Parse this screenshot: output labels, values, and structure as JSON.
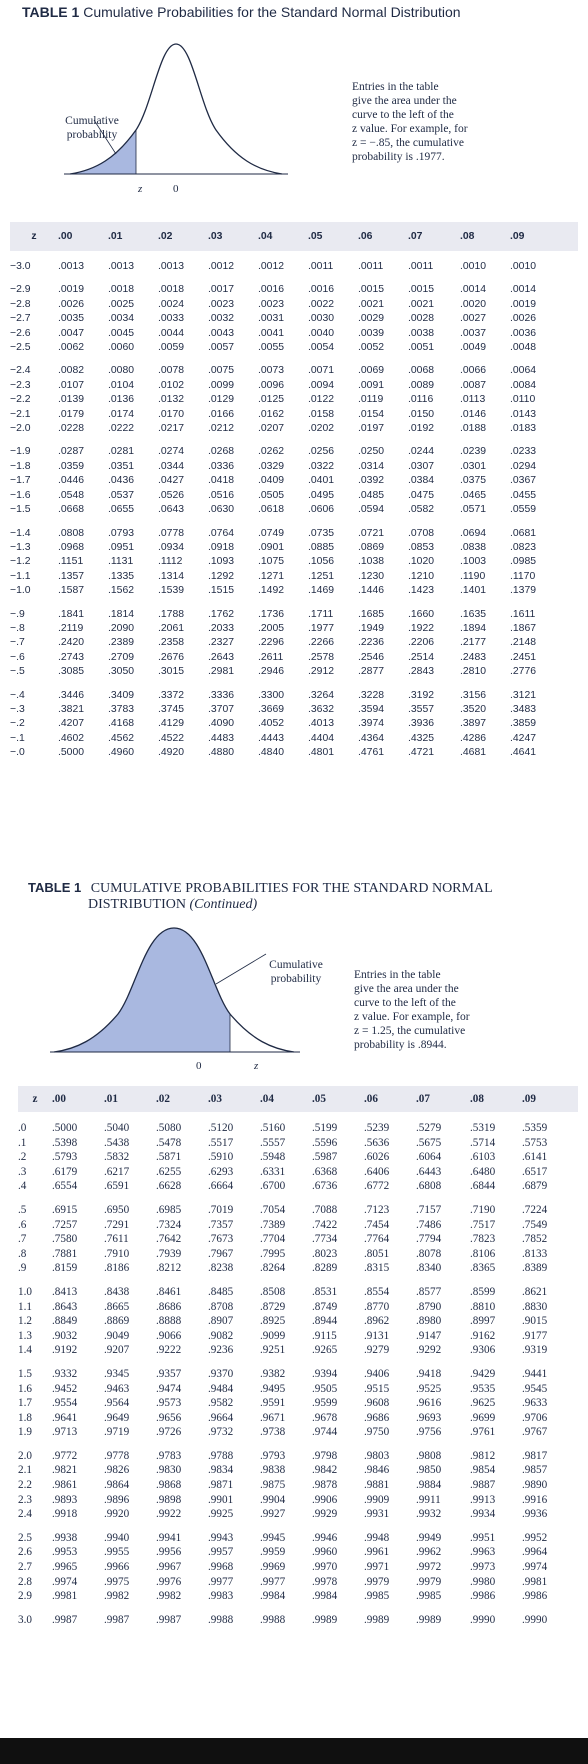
{
  "table1": {
    "label": "TABLE 1",
    "title": "Cumulative Probabilities for the Standard Normal Distribution",
    "cumulative_label": [
      "Cumulative",
      "probability"
    ],
    "axis_z": "z",
    "axis_zero": "0",
    "note": [
      "Entries in the table",
      "give the area under the",
      "curve to the left of the",
      "z value. For example, for",
      "z = −.85, the cumulative",
      "probability is .1977."
    ],
    "header": [
      "z",
      ".00",
      ".01",
      ".02",
      ".03",
      ".04",
      ".05",
      ".06",
      ".07",
      ".08",
      ".09"
    ],
    "groups": [
      [
        [
          "−3.0",
          ".0013",
          ".0013",
          ".0013",
          ".0012",
          ".0012",
          ".0011",
          ".0011",
          ".0011",
          ".0010",
          ".0010"
        ]
      ],
      [
        [
          "−2.9",
          ".0019",
          ".0018",
          ".0018",
          ".0017",
          ".0016",
          ".0016",
          ".0015",
          ".0015",
          ".0014",
          ".0014"
        ],
        [
          "−2.8",
          ".0026",
          ".0025",
          ".0024",
          ".0023",
          ".0023",
          ".0022",
          ".0021",
          ".0021",
          ".0020",
          ".0019"
        ],
        [
          "−2.7",
          ".0035",
          ".0034",
          ".0033",
          ".0032",
          ".0031",
          ".0030",
          ".0029",
          ".0028",
          ".0027",
          ".0026"
        ],
        [
          "−2.6",
          ".0047",
          ".0045",
          ".0044",
          ".0043",
          ".0041",
          ".0040",
          ".0039",
          ".0038",
          ".0037",
          ".0036"
        ],
        [
          "−2.5",
          ".0062",
          ".0060",
          ".0059",
          ".0057",
          ".0055",
          ".0054",
          ".0052",
          ".0051",
          ".0049",
          ".0048"
        ]
      ],
      [
        [
          "−2.4",
          ".0082",
          ".0080",
          ".0078",
          ".0075",
          ".0073",
          ".0071",
          ".0069",
          ".0068",
          ".0066",
          ".0064"
        ],
        [
          "−2.3",
          ".0107",
          ".0104",
          ".0102",
          ".0099",
          ".0096",
          ".0094",
          ".0091",
          ".0089",
          ".0087",
          ".0084"
        ],
        [
          "−2.2",
          ".0139",
          ".0136",
          ".0132",
          ".0129",
          ".0125",
          ".0122",
          ".0119",
          ".0116",
          ".0113",
          ".0110"
        ],
        [
          "−2.1",
          ".0179",
          ".0174",
          ".0170",
          ".0166",
          ".0162",
          ".0158",
          ".0154",
          ".0150",
          ".0146",
          ".0143"
        ],
        [
          "−2.0",
          ".0228",
          ".0222",
          ".0217",
          ".0212",
          ".0207",
          ".0202",
          ".0197",
          ".0192",
          ".0188",
          ".0183"
        ]
      ],
      [
        [
          "−1.9",
          ".0287",
          ".0281",
          ".0274",
          ".0268",
          ".0262",
          ".0256",
          ".0250",
          ".0244",
          ".0239",
          ".0233"
        ],
        [
          "−1.8",
          ".0359",
          ".0351",
          ".0344",
          ".0336",
          ".0329",
          ".0322",
          ".0314",
          ".0307",
          ".0301",
          ".0294"
        ],
        [
          "−1.7",
          ".0446",
          ".0436",
          ".0427",
          ".0418",
          ".0409",
          ".0401",
          ".0392",
          ".0384",
          ".0375",
          ".0367"
        ],
        [
          "−1.6",
          ".0548",
          ".0537",
          ".0526",
          ".0516",
          ".0505",
          ".0495",
          ".0485",
          ".0475",
          ".0465",
          ".0455"
        ],
        [
          "−1.5",
          ".0668",
          ".0655",
          ".0643",
          ".0630",
          ".0618",
          ".0606",
          ".0594",
          ".0582",
          ".0571",
          ".0559"
        ]
      ],
      [
        [
          "−1.4",
          ".0808",
          ".0793",
          ".0778",
          ".0764",
          ".0749",
          ".0735",
          ".0721",
          ".0708",
          ".0694",
          ".0681"
        ],
        [
          "−1.3",
          ".0968",
          ".0951",
          ".0934",
          ".0918",
          ".0901",
          ".0885",
          ".0869",
          ".0853",
          ".0838",
          ".0823"
        ],
        [
          "−1.2",
          ".1151",
          ".1131",
          ".1112",
          ".1093",
          ".1075",
          ".1056",
          ".1038",
          ".1020",
          ".1003",
          ".0985"
        ],
        [
          "−1.1",
          ".1357",
          ".1335",
          ".1314",
          ".1292",
          ".1271",
          ".1251",
          ".1230",
          ".1210",
          ".1190",
          ".1170"
        ],
        [
          "−1.0",
          ".1587",
          ".1562",
          ".1539",
          ".1515",
          ".1492",
          ".1469",
          ".1446",
          ".1423",
          ".1401",
          ".1379"
        ]
      ],
      [
        [
          "−.9",
          ".1841",
          ".1814",
          ".1788",
          ".1762",
          ".1736",
          ".1711",
          ".1685",
          ".1660",
          ".1635",
          ".1611"
        ],
        [
          "−.8",
          ".2119",
          ".2090",
          ".2061",
          ".2033",
          ".2005",
          ".1977",
          ".1949",
          ".1922",
          ".1894",
          ".1867"
        ],
        [
          "−.7",
          ".2420",
          ".2389",
          ".2358",
          ".2327",
          ".2296",
          ".2266",
          ".2236",
          ".2206",
          ".2177",
          ".2148"
        ],
        [
          "−.6",
          ".2743",
          ".2709",
          ".2676",
          ".2643",
          ".2611",
          ".2578",
          ".2546",
          ".2514",
          ".2483",
          ".2451"
        ],
        [
          "−.5",
          ".3085",
          ".3050",
          ".3015",
          ".2981",
          ".2946",
          ".2912",
          ".2877",
          ".2843",
          ".2810",
          ".2776"
        ]
      ],
      [
        [
          "−.4",
          ".3446",
          ".3409",
          ".3372",
          ".3336",
          ".3300",
          ".3264",
          ".3228",
          ".3192",
          ".3156",
          ".3121"
        ],
        [
          "−.3",
          ".3821",
          ".3783",
          ".3745",
          ".3707",
          ".3669",
          ".3632",
          ".3594",
          ".3557",
          ".3520",
          ".3483"
        ],
        [
          "−.2",
          ".4207",
          ".4168",
          ".4129",
          ".4090",
          ".4052",
          ".4013",
          ".3974",
          ".3936",
          ".3897",
          ".3859"
        ],
        [
          "−.1",
          ".4602",
          ".4562",
          ".4522",
          ".4483",
          ".4443",
          ".4404",
          ".4364",
          ".4325",
          ".4286",
          ".4247"
        ],
        [
          "−.0",
          ".5000",
          ".4960",
          ".4920",
          ".4880",
          ".4840",
          ".4801",
          ".4761",
          ".4721",
          ".4681",
          ".4641"
        ]
      ]
    ]
  },
  "table2": {
    "label": "TABLE 1",
    "title": "CUMULATIVE PROBABILITIES FOR THE STANDARD NORMAL",
    "title_line2": "DISTRIBUTION",
    "continued": "(Continued)",
    "cumulative_label": [
      "Cumulative",
      "probability"
    ],
    "axis_z": "z",
    "axis_zero": "0",
    "note": [
      "Entries in the table",
      "give the area under the",
      "curve to the left of the",
      "z value. For example, for",
      "z = 1.25, the cumulative",
      "probability is .8944."
    ],
    "header": [
      "z",
      ".00",
      ".01",
      ".02",
      ".03",
      ".04",
      ".05",
      ".06",
      ".07",
      ".08",
      ".09"
    ],
    "groups": [
      [
        [
          ".0",
          ".5000",
          ".5040",
          ".5080",
          ".5120",
          ".5160",
          ".5199",
          ".5239",
          ".5279",
          ".5319",
          ".5359"
        ],
        [
          ".1",
          ".5398",
          ".5438",
          ".5478",
          ".5517",
          ".5557",
          ".5596",
          ".5636",
          ".5675",
          ".5714",
          ".5753"
        ],
        [
          ".2",
          ".5793",
          ".5832",
          ".5871",
          ".5910",
          ".5948",
          ".5987",
          ".6026",
          ".6064",
          ".6103",
          ".6141"
        ],
        [
          ".3",
          ".6179",
          ".6217",
          ".6255",
          ".6293",
          ".6331",
          ".6368",
          ".6406",
          ".6443",
          ".6480",
          ".6517"
        ],
        [
          ".4",
          ".6554",
          ".6591",
          ".6628",
          ".6664",
          ".6700",
          ".6736",
          ".6772",
          ".6808",
          ".6844",
          ".6879"
        ]
      ],
      [
        [
          ".5",
          ".6915",
          ".6950",
          ".6985",
          ".7019",
          ".7054",
          ".7088",
          ".7123",
          ".7157",
          ".7190",
          ".7224"
        ],
        [
          ".6",
          ".7257",
          ".7291",
          ".7324",
          ".7357",
          ".7389",
          ".7422",
          ".7454",
          ".7486",
          ".7517",
          ".7549"
        ],
        [
          ".7",
          ".7580",
          ".7611",
          ".7642",
          ".7673",
          ".7704",
          ".7734",
          ".7764",
          ".7794",
          ".7823",
          ".7852"
        ],
        [
          ".8",
          ".7881",
          ".7910",
          ".7939",
          ".7967",
          ".7995",
          ".8023",
          ".8051",
          ".8078",
          ".8106",
          ".8133"
        ],
        [
          ".9",
          ".8159",
          ".8186",
          ".8212",
          ".8238",
          ".8264",
          ".8289",
          ".8315",
          ".8340",
          ".8365",
          ".8389"
        ]
      ],
      [
        [
          "1.0",
          ".8413",
          ".8438",
          ".8461",
          ".8485",
          ".8508",
          ".8531",
          ".8554",
          ".8577",
          ".8599",
          ".8621"
        ],
        [
          "1.1",
          ".8643",
          ".8665",
          ".8686",
          ".8708",
          ".8729",
          ".8749",
          ".8770",
          ".8790",
          ".8810",
          ".8830"
        ],
        [
          "1.2",
          ".8849",
          ".8869",
          ".8888",
          ".8907",
          ".8925",
          ".8944",
          ".8962",
          ".8980",
          ".8997",
          ".9015"
        ],
        [
          "1.3",
          ".9032",
          ".9049",
          ".9066",
          ".9082",
          ".9099",
          ".9115",
          ".9131",
          ".9147",
          ".9162",
          ".9177"
        ],
        [
          "1.4",
          ".9192",
          ".9207",
          ".9222",
          ".9236",
          ".9251",
          ".9265",
          ".9279",
          ".9292",
          ".9306",
          ".9319"
        ]
      ],
      [
        [
          "1.5",
          ".9332",
          ".9345",
          ".9357",
          ".9370",
          ".9382",
          ".9394",
          ".9406",
          ".9418",
          ".9429",
          ".9441"
        ],
        [
          "1.6",
          ".9452",
          ".9463",
          ".9474",
          ".9484",
          ".9495",
          ".9505",
          ".9515",
          ".9525",
          ".9535",
          ".9545"
        ],
        [
          "1.7",
          ".9554",
          ".9564",
          ".9573",
          ".9582",
          ".9591",
          ".9599",
          ".9608",
          ".9616",
          ".9625",
          ".9633"
        ],
        [
          "1.8",
          ".9641",
          ".9649",
          ".9656",
          ".9664",
          ".9671",
          ".9678",
          ".9686",
          ".9693",
          ".9699",
          ".9706"
        ],
        [
          "1.9",
          ".9713",
          ".9719",
          ".9726",
          ".9732",
          ".9738",
          ".9744",
          ".9750",
          ".9756",
          ".9761",
          ".9767"
        ]
      ],
      [
        [
          "2.0",
          ".9772",
          ".9778",
          ".9783",
          ".9788",
          ".9793",
          ".9798",
          ".9803",
          ".9808",
          ".9812",
          ".9817"
        ],
        [
          "2.1",
          ".9821",
          ".9826",
          ".9830",
          ".9834",
          ".9838",
          ".9842",
          ".9846",
          ".9850",
          ".9854",
          ".9857"
        ],
        [
          "2.2",
          ".9861",
          ".9864",
          ".9868",
          ".9871",
          ".9875",
          ".9878",
          ".9881",
          ".9884",
          ".9887",
          ".9890"
        ],
        [
          "2.3",
          ".9893",
          ".9896",
          ".9898",
          ".9901",
          ".9904",
          ".9906",
          ".9909",
          ".9911",
          ".9913",
          ".9916"
        ],
        [
          "2.4",
          ".9918",
          ".9920",
          ".9922",
          ".9925",
          ".9927",
          ".9929",
          ".9931",
          ".9932",
          ".9934",
          ".9936"
        ]
      ],
      [
        [
          "2.5",
          ".9938",
          ".9940",
          ".9941",
          ".9943",
          ".9945",
          ".9946",
          ".9948",
          ".9949",
          ".9951",
          ".9952"
        ],
        [
          "2.6",
          ".9953",
          ".9955",
          ".9956",
          ".9957",
          ".9959",
          ".9960",
          ".9961",
          ".9962",
          ".9963",
          ".9964"
        ],
        [
          "2.7",
          ".9965",
          ".9966",
          ".9967",
          ".9968",
          ".9969",
          ".9970",
          ".9971",
          ".9972",
          ".9973",
          ".9974"
        ],
        [
          "2.8",
          ".9974",
          ".9975",
          ".9976",
          ".9977",
          ".9977",
          ".9978",
          ".9979",
          ".9979",
          ".9980",
          ".9981"
        ],
        [
          "2.9",
          ".9981",
          ".9982",
          ".9982",
          ".9983",
          ".9984",
          ".9984",
          ".9985",
          ".9985",
          ".9986",
          ".9986"
        ]
      ],
      [
        [
          "3.0",
          ".9987",
          ".9987",
          ".9987",
          ".9988",
          ".9988",
          ".9989",
          ".9989",
          ".9989",
          ".9990",
          ".9990"
        ]
      ]
    ]
  },
  "colors": {
    "curve_fill": "#a9b8e0",
    "curve_stroke": "#1f2a44",
    "header_bg": "#e9eaf1",
    "text": "#1f2a44"
  }
}
